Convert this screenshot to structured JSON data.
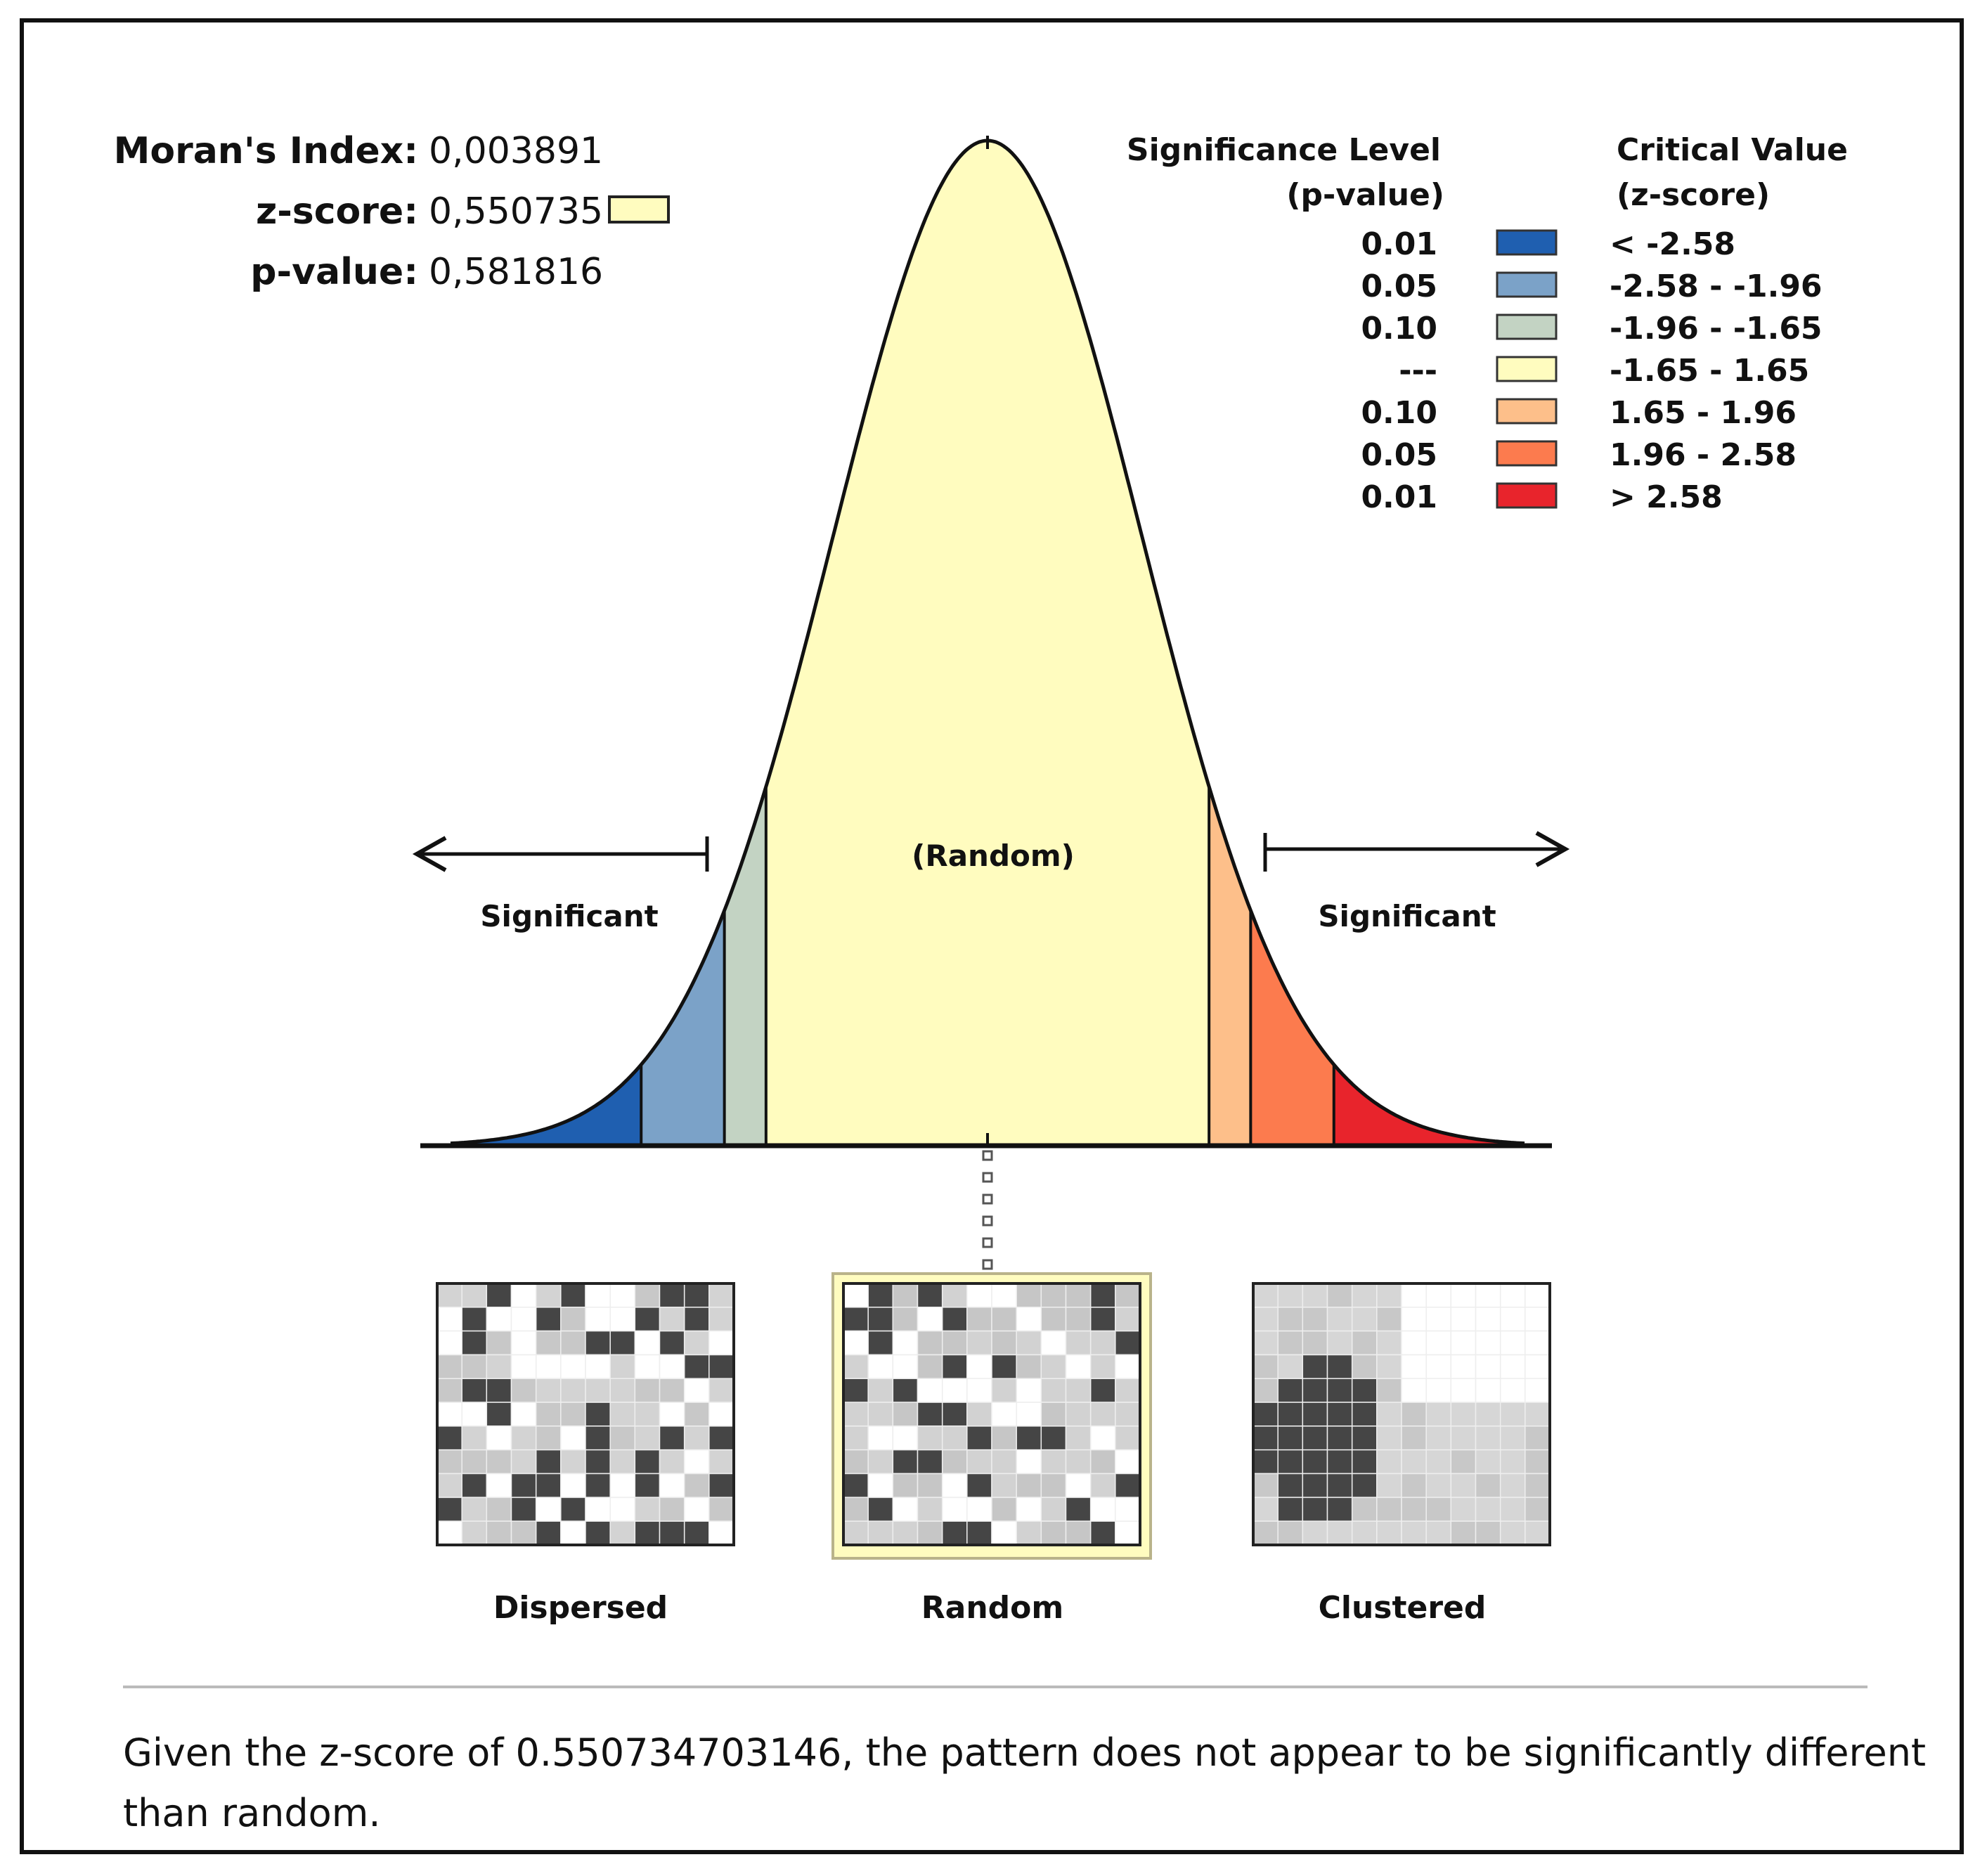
{
  "stats": {
    "index_label": "Moran's Index:",
    "index_value": "0,003891",
    "z_label": "z-score:",
    "z_value": "0,550735",
    "p_label": "p-value:",
    "p_value": "0,581816",
    "z_swatch_color": "#fffcbf"
  },
  "legend": {
    "sig_header_line1": "Significance Level",
    "sig_header_line2": "(p-value)",
    "crit_header_line1": "Critical Value",
    "crit_header_line2": "(z-score)",
    "rows": [
      {
        "p": "0.01",
        "z": "< -2.58",
        "color": "#1f5fb0"
      },
      {
        "p": "0.05",
        "z": "-2.58 - -1.96",
        "color": "#7ba2c8"
      },
      {
        "p": "0.10",
        "z": "-1.96 - -1.65",
        "color": "#c3d3c3"
      },
      {
        "p": "---",
        "z": "-1.65 - 1.65",
        "color": "#fffcbf"
      },
      {
        "p": "0.10",
        "z": "1.65 - 1.96",
        "color": "#fdbf8a"
      },
      {
        "p": "0.05",
        "z": "1.96 - 2.58",
        "color": "#fc7b4e"
      },
      {
        "p": "0.01",
        "z": "> 2.58",
        "color": "#e8242c"
      }
    ]
  },
  "curve": {
    "random_label": "(Random)",
    "significant_left": "Significant",
    "significant_right": "Significant",
    "zscore": 0.550735,
    "bands": [
      {
        "from": -4,
        "to": -2.58,
        "color": "#1f5fb0"
      },
      {
        "from": -2.58,
        "to": -1.96,
        "color": "#7ba2c8"
      },
      {
        "from": -1.96,
        "to": -1.65,
        "color": "#c3d3c3"
      },
      {
        "from": -1.65,
        "to": 1.65,
        "color": "#fffcbf"
      },
      {
        "from": 1.65,
        "to": 1.96,
        "color": "#fdbf8a"
      },
      {
        "from": 1.96,
        "to": 2.58,
        "color": "#fc7b4e"
      },
      {
        "from": 2.58,
        "to": 4,
        "color": "#e8242c"
      }
    ]
  },
  "patterns": {
    "dispersed_label": "Dispersed",
    "random_label": "Random",
    "clustered_label": "Clustered"
  },
  "summary": {
    "line1": "Given the z-score of 0.550734703146, the pattern does not appear to be significantly different",
    "line2": "than random."
  }
}
